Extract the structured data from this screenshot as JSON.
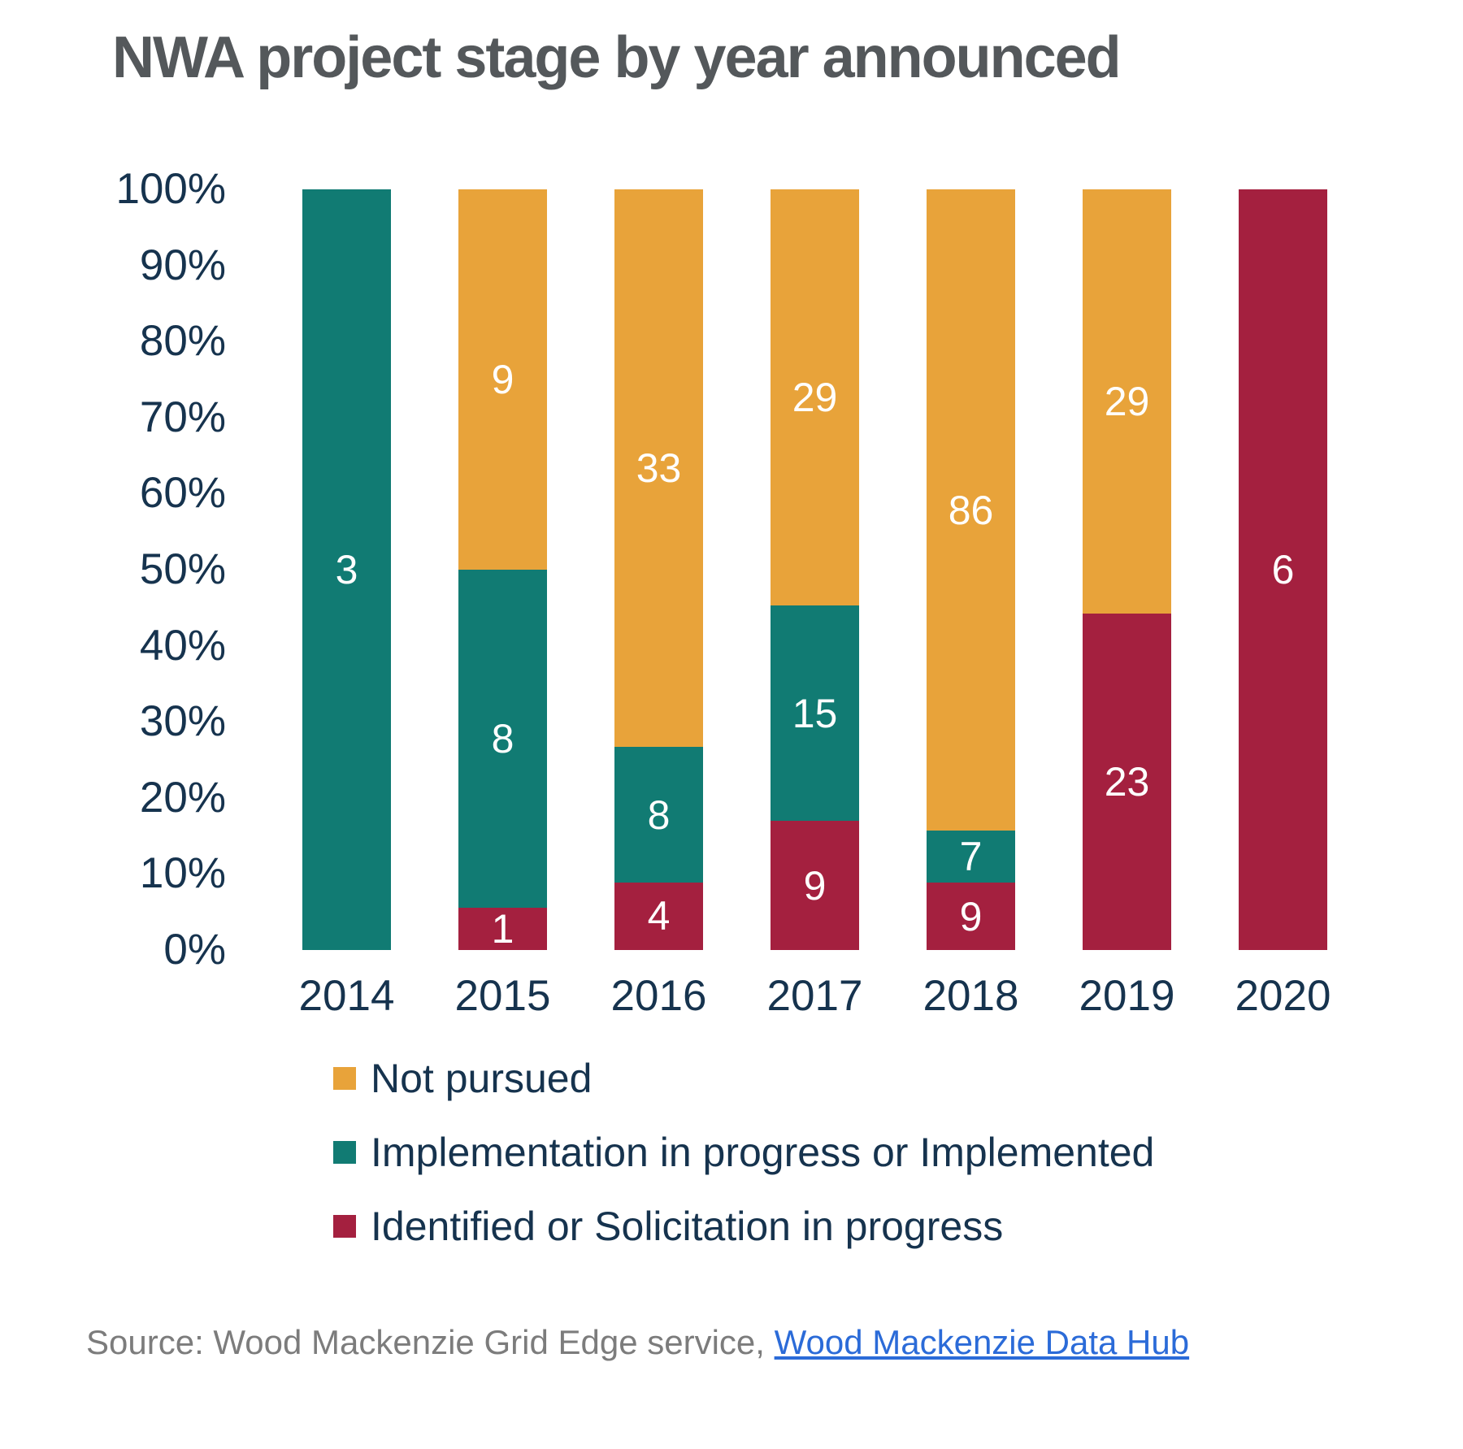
{
  "title": "NWA project stage by year announced",
  "source": {
    "prefix": "Source: Wood Mackenzie Grid Edge service, ",
    "link_text": "Wood Mackenzie Data Hub"
  },
  "colors": {
    "not_pursued": "#E8A33A",
    "implementation": "#117B73",
    "identified": "#A4203F",
    "axis_text": "#16334E",
    "title_text": "#54585B",
    "source_text": "#7C7C7C",
    "link": "#2B6BD8",
    "bar_label": "#FFFFFF"
  },
  "chart_data": {
    "type": "bar",
    "stacked": true,
    "normalized": "percent",
    "title": "NWA project stage by year announced",
    "categories": [
      "2014",
      "2015",
      "2016",
      "2017",
      "2018",
      "2019",
      "2020"
    ],
    "series": [
      {
        "name": "Identified or Solicitation in progress",
        "color_key": "identified",
        "values": [
          0,
          1,
          4,
          9,
          9,
          23,
          6
        ]
      },
      {
        "name": "Implementation in progress or Implemented",
        "color_key": "implementation",
        "values": [
          3,
          8,
          8,
          15,
          7,
          0,
          0
        ]
      },
      {
        "name": "Not pursued",
        "color_key": "not_pursued",
        "values": [
          0,
          9,
          33,
          29,
          86,
          29,
          0
        ]
      }
    ],
    "y_axis": {
      "min": 0,
      "max": 100,
      "ticks": [
        "100%",
        "90%",
        "80%",
        "70%",
        "60%",
        "50%",
        "40%",
        "30%",
        "20%",
        "10%",
        "0%"
      ]
    },
    "grid": false,
    "legend_position": "bottom-left",
    "legend": [
      {
        "label": "Not pursued",
        "color_key": "not_pursued"
      },
      {
        "label": "Implementation in progress or Implemented",
        "color_key": "implementation"
      },
      {
        "label": "Identified or Solicitation in progress",
        "color_key": "identified"
      }
    ]
  }
}
